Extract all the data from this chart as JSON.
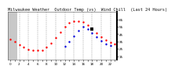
{
  "title": "Milwaukee Weather  Outdoor Temp (vs)  Wind Chill  (Last 24 Hours)",
  "bg_color": "#ffffff",
  "plot_bg": "#ffffff",
  "left_bg": "#c8c8c8",
  "grid_color": "#999999",
  "red_color": "#ff0000",
  "blue_color": "#0000dd",
  "black_color": "#000000",
  "hours": [
    0,
    1,
    2,
    3,
    4,
    5,
    6,
    7,
    8,
    9,
    10,
    11,
    12,
    13,
    14,
    15,
    16,
    17,
    18,
    19,
    20,
    21,
    22,
    23
  ],
  "temp": [
    38,
    35,
    31,
    27,
    24,
    23,
    23,
    23,
    27,
    33,
    40,
    48,
    55,
    60,
    63,
    63,
    61,
    57,
    52,
    46,
    41,
    37,
    34,
    32
  ],
  "wind_chill": [
    null,
    null,
    null,
    null,
    null,
    null,
    null,
    null,
    null,
    null,
    null,
    null,
    28,
    35,
    42,
    50,
    55,
    52,
    47,
    41,
    36,
    32,
    29,
    null
  ],
  "ylim_min": 10,
  "ylim_max": 75,
  "yticks": [
    15,
    25,
    35,
    45,
    55,
    65
  ],
  "ytick_labels": [
    "15",
    "25",
    "35",
    "45",
    "55",
    "65"
  ],
  "title_fontsize": 3.8,
  "tick_fontsize": 3.0,
  "marker_hour": 18,
  "grid_hours": [
    2,
    4,
    6,
    8,
    10,
    12,
    14,
    16,
    18,
    20,
    22
  ]
}
